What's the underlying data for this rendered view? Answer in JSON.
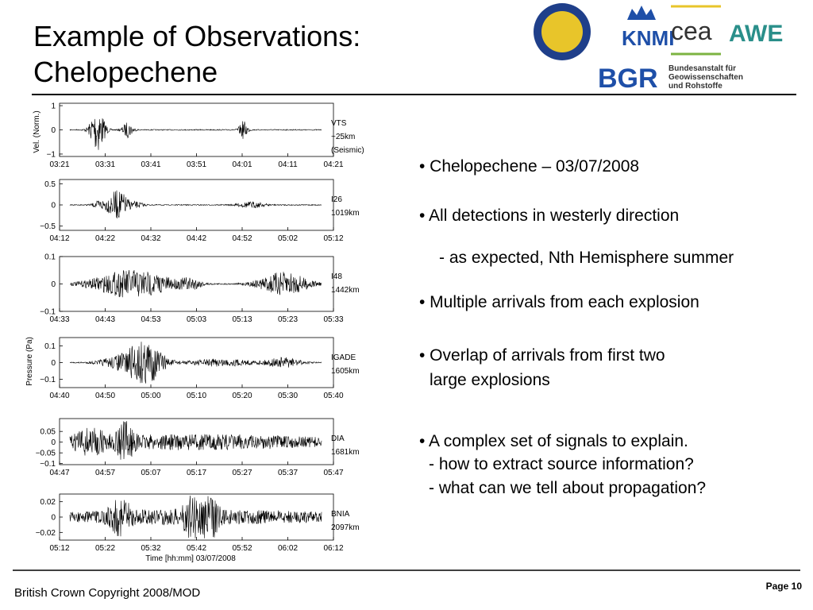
{
  "header": {
    "title_lines": [
      "Example of Observations:",
      "Chelopechene"
    ]
  },
  "logos": {
    "knmi": "KNMI",
    "cea": "cea",
    "awe": "AWE",
    "bgr": "BGR",
    "bgr_name": [
      "Bundesanstalt für",
      "Geowissenschaften",
      "und Rohstoffe"
    ]
  },
  "figure": {
    "y_labels": [
      "Vel. (Norm.)",
      "Pressure (Pa)"
    ],
    "x_label": "Time [hh:mm] 03/07/2008",
    "panels": [
      {
        "station": [
          "VTS",
          "~25km",
          "(Seismic)"
        ],
        "ylim": [
          -1.1,
          1.1
        ],
        "yticks": [
          1,
          0,
          {
            "value": -1,
            "label": "−1"
          }
        ],
        "xticks": [
          "03:21",
          "03:31",
          "03:41",
          "03:51",
          "04:01",
          "04:11",
          "04:21"
        ]
      },
      {
        "station": [
          "I26",
          "1019km"
        ],
        "ylim": [
          -0.6,
          0.6
        ],
        "yticks": [
          0.5,
          0,
          {
            "value": -0.5,
            "label": "−0.5"
          }
        ],
        "xticks": [
          "04:12",
          "04:22",
          "04:32",
          "04:42",
          "04:52",
          "05:02",
          "05:12"
        ]
      },
      {
        "station": [
          "I48",
          "1442km"
        ],
        "ylim": [
          -0.1,
          0.1
        ],
        "yticks": [
          0.1,
          0,
          {
            "value": -0.1,
            "label": "−0.1"
          }
        ],
        "xticks": [
          "04:33",
          "04:43",
          "04:53",
          "05:03",
          "05:13",
          "05:23",
          "05:33"
        ]
      },
      {
        "station": [
          "IGADE",
          "1605km"
        ],
        "ylim": [
          -0.15,
          0.15
        ],
        "yticks": [
          0.1,
          0,
          {
            "value": -0.1,
            "label": "−0.1"
          }
        ],
        "xticks": [
          "04:40",
          "04:50",
          "05:00",
          "05:10",
          "05:20",
          "05:30",
          "05:40"
        ]
      },
      {
        "station": [
          "DIA",
          "1681km"
        ],
        "ylim": [
          -0.105,
          0.11
        ],
        "yticks": [
          0.05,
          0,
          {
            "value": -0.05,
            "label": "−0.05"
          },
          {
            "value": -0.1,
            "label": "−0.1"
          }
        ],
        "xticks": [
          "04:47",
          "04:57",
          "05:07",
          "05:17",
          "05:27",
          "05:37",
          "05:47"
        ]
      },
      {
        "station": [
          "BNIA",
          "2097km"
        ],
        "ylim": [
          -0.03,
          0.03
        ],
        "yticks": [
          0.02,
          0,
          {
            "value": -0.02,
            "label": "−0.02"
          }
        ],
        "xticks": [
          "05:12",
          "05:22",
          "05:32",
          "05:42",
          "05:52",
          "06:02",
          "06:12"
        ]
      }
    ]
  },
  "bullets": [
    [
      "• Chelopechene – 03/07/2008"
    ],
    [
      "• All detections in westerly direction"
    ],
    [
      "- as expected, Nth Hemisphere summer"
    ],
    [
      "• Multiple arrivals from each explosion"
    ],
    [
      "• Overlap of arrivals from first two",
      "large explosions"
    ],
    [
      "• A complex set of signals to explain.",
      "- how to extract source information?",
      "- what can we tell about propagation?"
    ]
  ],
  "footer": {
    "copyright": "British Crown Copyright 2008/MOD",
    "page": "Page 10"
  }
}
